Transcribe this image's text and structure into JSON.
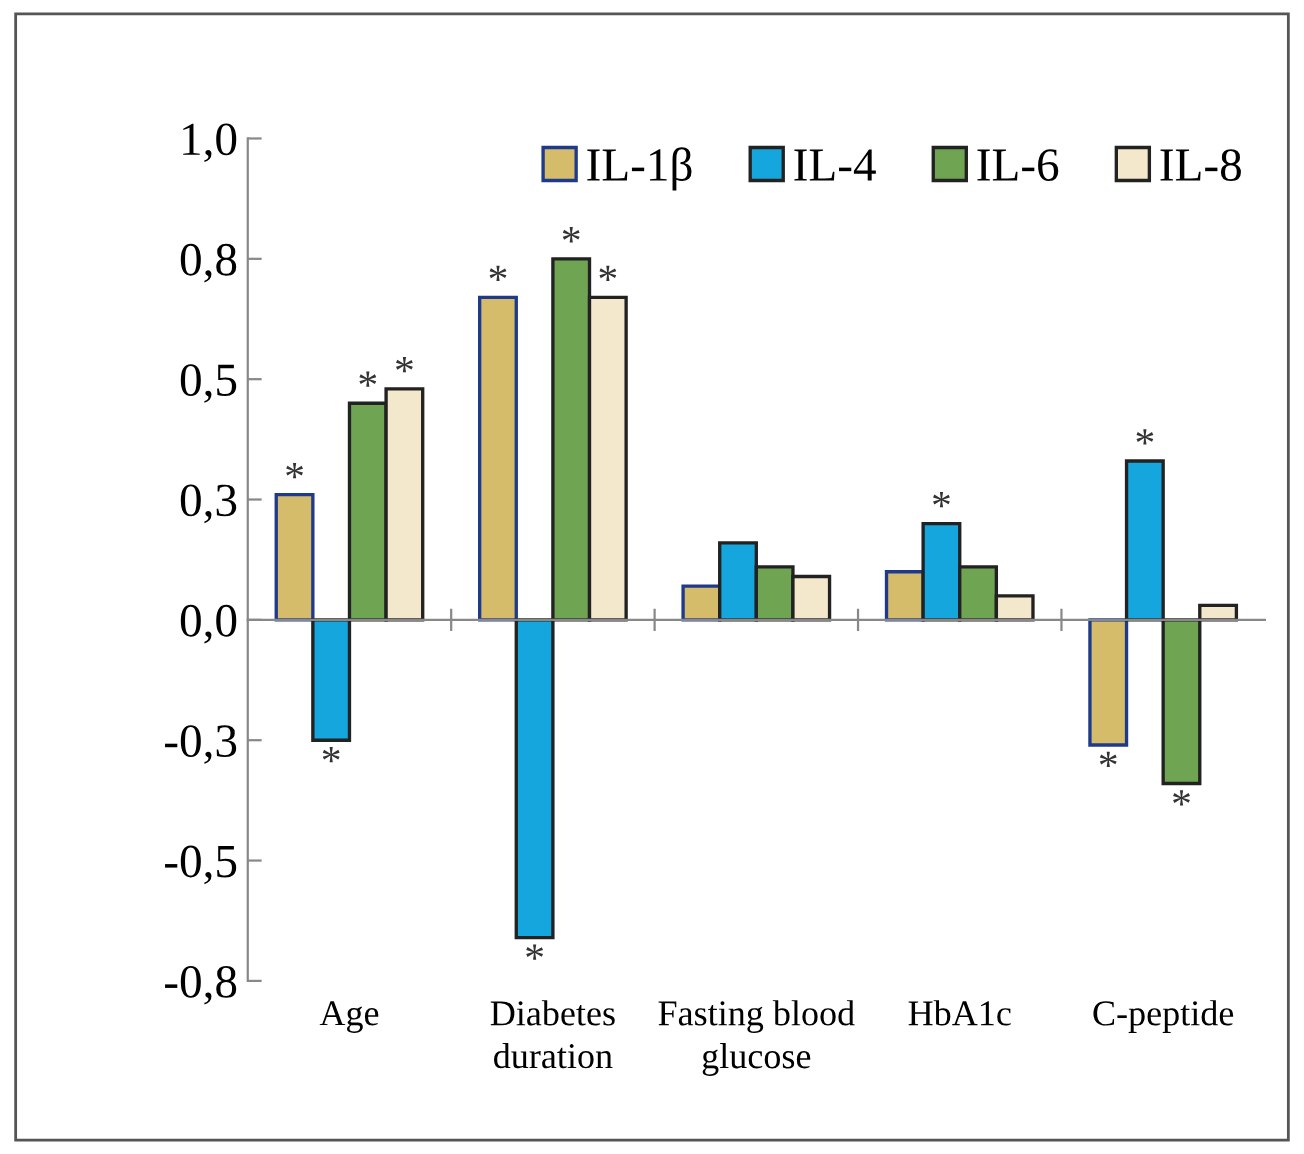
{
  "chart_data": {
    "type": "bar",
    "categories": [
      "Age",
      "Diabetes\nduration",
      "Fasting blood\nglucose",
      "HbA1c",
      "C-peptide"
    ],
    "series": [
      {
        "name": "IL-1β",
        "color": "#d4bc6a",
        "values": [
          0.26,
          0.67,
          0.07,
          0.1,
          -0.26
        ],
        "value_labels": [
          "*",
          "*",
          null,
          null,
          "*"
        ]
      },
      {
        "name": "IL-4",
        "color": "#14a6dc",
        "values": [
          -0.25,
          -0.66,
          0.16,
          0.2,
          0.33
        ],
        "value_labels": [
          "*",
          "*",
          null,
          "*",
          "*"
        ]
      },
      {
        "name": "IL-6",
        "color": "#6fa552",
        "values": [
          0.45,
          0.75,
          0.11,
          0.11,
          -0.34
        ],
        "value_labels": [
          "*",
          "*",
          null,
          null,
          "*"
        ]
      },
      {
        "name": "IL-8",
        "color": "#f3e7cc",
        "values": [
          0.48,
          0.67,
          0.09,
          0.05,
          0.03
        ],
        "value_labels": [
          "*",
          "*",
          null,
          null,
          null
        ]
      }
    ],
    "ylim": [
      -0.75,
      1.0
    ],
    "yticks": [
      {
        "value": 1.0,
        "label": "1,0"
      },
      {
        "value": 0.75,
        "label": "0,8"
      },
      {
        "value": 0.5,
        "label": "0,5"
      },
      {
        "value": 0.25,
        "label": "0,3"
      },
      {
        "value": 0,
        "label": "0,0"
      },
      {
        "value": -0.25,
        "label": "-0,3"
      },
      {
        "value": -0.5,
        "label": "-0,5"
      },
      {
        "value": -0.75,
        "label": "-0,8"
      }
    ],
    "legend": "top right"
  }
}
